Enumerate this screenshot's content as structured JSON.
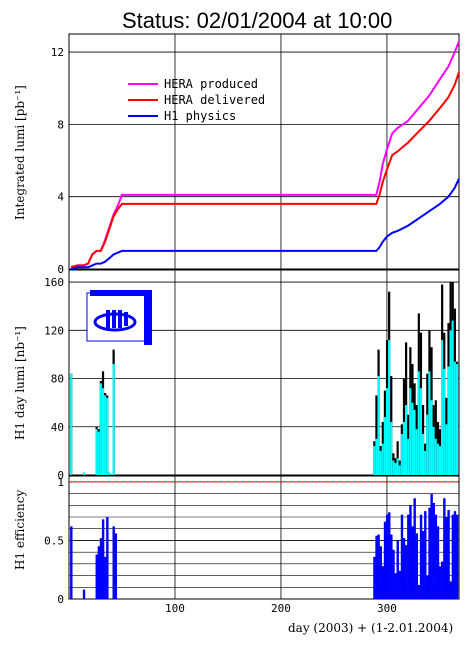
{
  "title": "Status: 02/01/2004 at 10:00",
  "xlabel": "day (2003) + (1-2.01.2004)",
  "colors": {
    "produced": "#ff00ff",
    "delivered": "#ff0000",
    "h1": "#0000ff",
    "bar_fill": "#00ffff",
    "bar_black": "#000000"
  },
  "icon": "h1-logo",
  "chart_data": [
    {
      "type": "line",
      "ylabel": "Integrated lumi [pb⁻¹]",
      "ylim": [
        0,
        13
      ],
      "xlim": [
        0,
        368
      ],
      "yticks": [
        "0",
        "4",
        "8",
        "12"
      ],
      "legend": "top-left",
      "series": [
        {
          "name": "HERA produced",
          "color": "#ff00ff",
          "x": [
            2,
            8,
            14,
            18,
            22,
            26,
            30,
            34,
            38,
            42,
            46,
            50,
            54,
            100,
            200,
            290,
            293,
            296,
            300,
            305,
            310,
            320,
            330,
            340,
            350,
            358,
            364,
            368
          ],
          "y": [
            0.1,
            0.2,
            0.2,
            0.3,
            0.8,
            1.0,
            1.0,
            1.6,
            2.3,
            3.0,
            3.5,
            4.1,
            4.1,
            4.1,
            4.1,
            4.1,
            4.8,
            5.8,
            6.6,
            7.5,
            7.8,
            8.2,
            8.9,
            9.6,
            10.5,
            11.2,
            12.0,
            12.6
          ]
        },
        {
          "name": "HERA delivered",
          "color": "#ff0000",
          "x": [
            2,
            8,
            14,
            18,
            22,
            26,
            30,
            34,
            38,
            42,
            46,
            50,
            54,
            100,
            200,
            290,
            293,
            296,
            300,
            305,
            310,
            320,
            330,
            340,
            350,
            358,
            364,
            368
          ],
          "y": [
            0.1,
            0.2,
            0.2,
            0.3,
            0.8,
            1.0,
            1.0,
            1.5,
            2.2,
            2.9,
            3.3,
            3.6,
            3.6,
            3.6,
            3.6,
            3.6,
            4.1,
            4.8,
            5.5,
            6.3,
            6.5,
            7.0,
            7.6,
            8.2,
            8.9,
            9.5,
            10.2,
            10.9
          ]
        },
        {
          "name": "H1 physics",
          "color": "#0000ff",
          "x": [
            2,
            8,
            14,
            18,
            22,
            26,
            30,
            34,
            38,
            42,
            46,
            50,
            54,
            100,
            200,
            290,
            293,
            296,
            300,
            305,
            310,
            320,
            330,
            340,
            350,
            358,
            364,
            368
          ],
          "y": [
            0.0,
            0.1,
            0.1,
            0.1,
            0.2,
            0.3,
            0.3,
            0.4,
            0.6,
            0.8,
            0.9,
            1.0,
            1.0,
            1.0,
            1.0,
            1.0,
            1.2,
            1.5,
            1.8,
            2.0,
            2.1,
            2.4,
            2.8,
            3.2,
            3.6,
            4.0,
            4.5,
            5.0
          ]
        }
      ]
    },
    {
      "type": "bar",
      "ylabel": "H1 day lumi [nb⁻¹]",
      "ylim": [
        0,
        170
      ],
      "xlim": [
        0,
        368
      ],
      "yticks": [
        "0",
        "40",
        "80",
        "120",
        "160"
      ],
      "series": [
        {
          "name": "",
          "color": "#000000",
          "x": [
            2,
            4,
            14,
            26,
            28,
            30,
            32,
            34,
            36,
            38,
            42,
            44,
            288,
            290,
            292,
            294,
            296,
            298,
            300,
            302,
            304,
            306,
            308,
            310,
            312,
            314,
            316,
            318,
            320,
            322,
            324,
            326,
            328,
            330,
            332,
            334,
            336,
            338,
            340,
            342,
            344,
            346,
            348,
            350,
            352,
            354,
            356,
            358,
            360,
            362,
            364,
            366
          ],
          "values": [
            84,
            0,
            2,
            40,
            38,
            78,
            86,
            68,
            66,
            2,
            104,
            0,
            28,
            66,
            104,
            24,
            44,
            70,
            112,
            152,
            82,
            18,
            14,
            28,
            12,
            42,
            80,
            110,
            50,
            106,
            92,
            76,
            58,
            134,
            118,
            58,
            26,
            84,
            120,
            106,
            58,
            62,
            44,
            38,
            158,
            118,
            64,
            126,
            160,
            160,
            138,
            94
          ],
          "fills": [
            84,
            0,
            2,
            38,
            36,
            76,
            72,
            66,
            64,
            2,
            92,
            0,
            24,
            30,
            82,
            20,
            26,
            48,
            72,
            112,
            44,
            12,
            10,
            14,
            8,
            34,
            44,
            58,
            30,
            72,
            60,
            54,
            38,
            86,
            72,
            34,
            20,
            50,
            86,
            62,
            40,
            30,
            26,
            24,
            112,
            88,
            42,
            90,
            120,
            128,
            94,
            92
          ]
        }
      ]
    },
    {
      "type": "bar",
      "ylabel": "H1 efficiency",
      "ylim": [
        0,
        1.05
      ],
      "xlim": [
        0,
        368
      ],
      "xticks": [
        "100",
        "200",
        "300"
      ],
      "yticks": [
        "0",
        "0.5",
        "1"
      ],
      "series": [
        {
          "name": "",
          "color": "#0000ff",
          "x": [
            2,
            14,
            26,
            28,
            30,
            32,
            34,
            36,
            42,
            44,
            288,
            290,
            292,
            294,
            296,
            298,
            300,
            302,
            304,
            306,
            308,
            310,
            312,
            314,
            316,
            318,
            320,
            322,
            324,
            326,
            328,
            330,
            332,
            334,
            336,
            338,
            340,
            342,
            344,
            346,
            348,
            350,
            352,
            354,
            356,
            358,
            360,
            362,
            364,
            366
          ],
          "values": [
            0.62,
            0.08,
            0.38,
            0.45,
            0.52,
            0.68,
            0.36,
            0.7,
            0.62,
            0.56,
            0.36,
            0.54,
            0.55,
            0.45,
            0.28,
            0.66,
            0.72,
            0.74,
            0.55,
            0.42,
            0.22,
            0.5,
            0.24,
            0.72,
            0.52,
            0.46,
            0.72,
            0.8,
            0.62,
            0.86,
            0.56,
            0.12,
            0.72,
            0.58,
            0.75,
            0.2,
            0.78,
            0.9,
            0.82,
            0.72,
            0.62,
            0.28,
            0.32,
            0.86,
            0.7,
            0.76,
            0.15,
            0.72,
            0.75,
            0.72
          ]
        }
      ]
    }
  ]
}
